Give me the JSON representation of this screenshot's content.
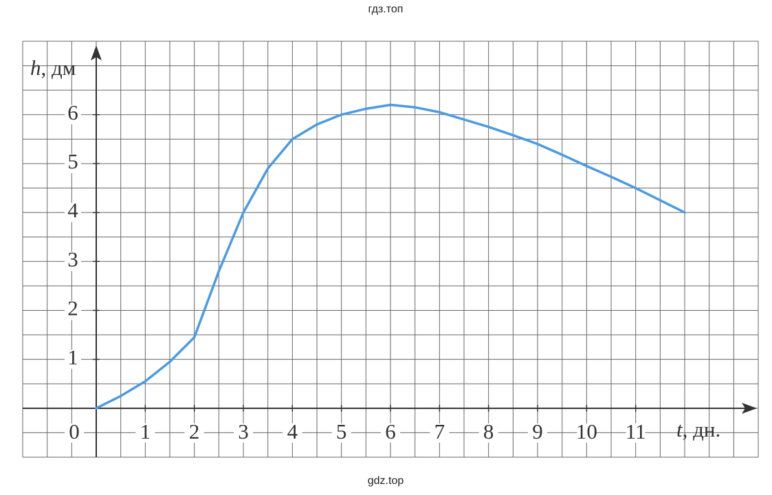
{
  "header": {
    "watermark_top": "гдз.топ"
  },
  "chart_data": {
    "type": "line",
    "y_label": {
      "var": "h",
      "unit": ", дм"
    },
    "x_label": {
      "var": "t",
      "unit": ", дн."
    },
    "x": [
      0,
      0.5,
      1,
      1.5,
      2,
      2.5,
      3,
      3.5,
      4,
      4.5,
      5,
      5.5,
      6,
      6.5,
      7,
      7.5,
      8,
      8.5,
      9,
      9.5,
      10,
      10.5,
      11,
      11.5,
      12
    ],
    "series": [
      {
        "color": "#4a9be3",
        "values": [
          0,
          0.25,
          0.55,
          0.95,
          1.45,
          2.8,
          4.0,
          4.9,
          5.5,
          5.8,
          6.0,
          6.12,
          6.2,
          6.15,
          6.05,
          5.9,
          5.75,
          5.58,
          5.4,
          5.18,
          4.95,
          4.73,
          4.5,
          4.25,
          4.0
        ]
      }
    ],
    "xlim": [
      -1.5,
      13.5
    ],
    "ylim": [
      -1,
      7.5
    ],
    "xticks": [
      0,
      1,
      2,
      3,
      4,
      5,
      6,
      7,
      8,
      9,
      10,
      11
    ],
    "yticks": [
      1,
      2,
      3,
      4,
      5,
      6
    ],
    "grid": true
  },
  "footer": {
    "watermark_bottom": "gdz.top"
  }
}
